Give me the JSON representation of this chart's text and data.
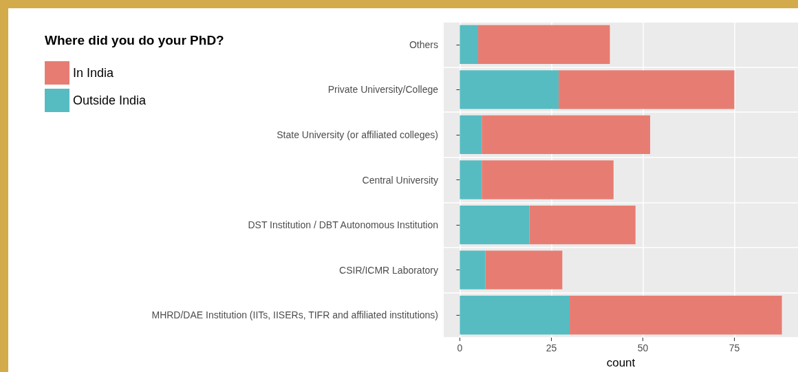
{
  "chart_data": {
    "type": "bar",
    "orientation": "horizontal",
    "stacked": true,
    "legend_title": "Where did you do your PhD?",
    "xlabel": "count",
    "categories": [
      "Others",
      "Private University/College",
      "State University (or affiliated colleges)",
      "Central University",
      "DST Institution / DBT Autonomous Institution",
      "CSIR/ICMR Laboratory",
      "MHRD/DAE Institution (IITs, IISERs, TIFR and affiliated institutions)"
    ],
    "series": [
      {
        "name": "Outside India",
        "color": "#56bcc2",
        "values": [
          5,
          27,
          6,
          6,
          19,
          7,
          30
        ]
      },
      {
        "name": "In India",
        "color": "#e77d72",
        "values": [
          36,
          48,
          46,
          36,
          29,
          21,
          58
        ]
      }
    ],
    "xlim": [
      -4.4,
      92.4
    ],
    "xticks": [
      0,
      25,
      50,
      75
    ],
    "grid": true,
    "legend": "top left"
  }
}
